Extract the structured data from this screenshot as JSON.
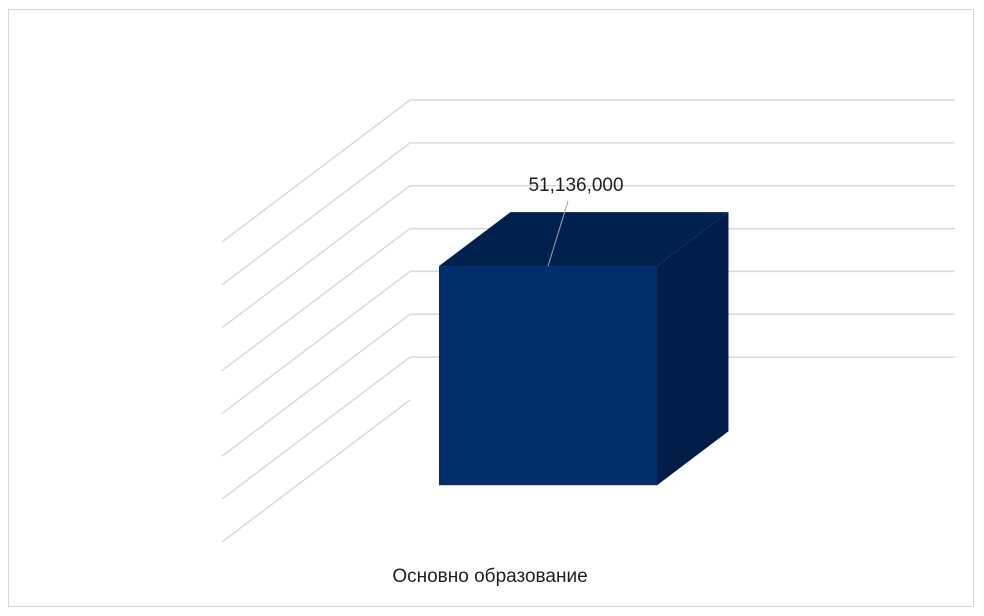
{
  "chart_data": {
    "type": "bar",
    "style": "3d-column",
    "categories": [
      "Основно образование"
    ],
    "values": [
      51136000
    ],
    "data_labels": [
      "51,136,000"
    ],
    "ylim": [
      0,
      70000000
    ],
    "grid": true,
    "legend": "none"
  },
  "colors": {
    "bar_front": "#002d6b",
    "bar_top": "#00204e",
    "bar_side": "#001c47",
    "gridline": "#d9d9d9",
    "frame_border": "#d9d9d9",
    "text": "#1f1f1f",
    "leader_line": "#a6a6a6"
  }
}
